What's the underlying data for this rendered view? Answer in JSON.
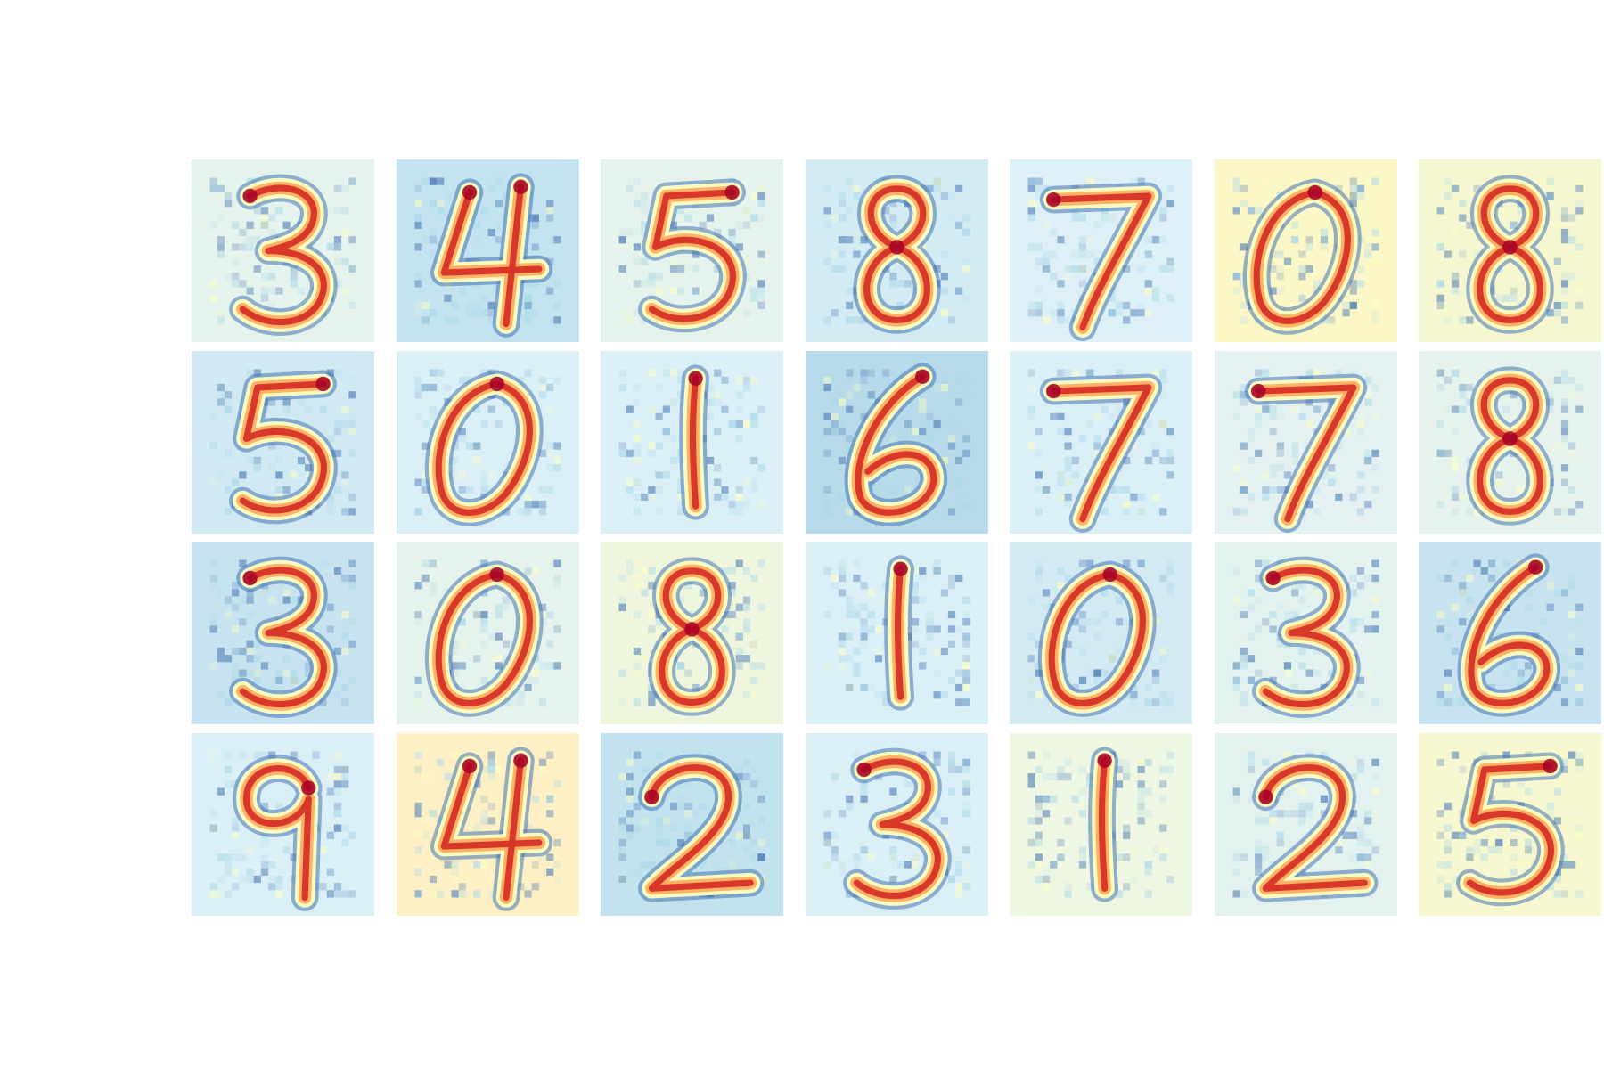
{
  "figure": {
    "colormap": "RdYlBu_r",
    "colors": {
      "low": "#4575b4",
      "mid_low": "#abd9e9",
      "mid": "#ffffbf",
      "mid_high": "#fdae61",
      "high": "#d73027",
      "deep": "#a50026"
    },
    "grid": {
      "rows": 4,
      "cols": 7
    },
    "tiles": [
      {
        "digit": "3",
        "background": "#e4f3ec"
      },
      {
        "digit": "4",
        "background": "#c2e3ef"
      },
      {
        "digit": "5",
        "background": "#e4f3ec"
      },
      {
        "digit": "8",
        "background": "#d3ebf3"
      },
      {
        "digit": "7",
        "background": "#dcf0f6"
      },
      {
        "digit": "0",
        "background": "#fbf7c7"
      },
      {
        "digit": "8",
        "background": "#f4f7d0"
      },
      {
        "digit": "5",
        "background": "#d0e9f2"
      },
      {
        "digit": "0",
        "background": "#dbeff6"
      },
      {
        "digit": "1",
        "background": "#dbeff6"
      },
      {
        "digit": "6",
        "background": "#b7dbea"
      },
      {
        "digit": "7",
        "background": "#dbeff6"
      },
      {
        "digit": "7",
        "background": "#e3f2f1"
      },
      {
        "digit": "8",
        "background": "#e6f3ec"
      },
      {
        "digit": "3",
        "background": "#c6e3ef"
      },
      {
        "digit": "0",
        "background": "#e4f3ec"
      },
      {
        "digit": "8",
        "background": "#eef6de"
      },
      {
        "digit": "1",
        "background": "#dbeff6"
      },
      {
        "digit": "0",
        "background": "#d3eaf3"
      },
      {
        "digit": "3",
        "background": "#e2f2ef"
      },
      {
        "digit": "6",
        "background": "#c6e3ef"
      },
      {
        "digit": "9",
        "background": "#dbeff6"
      },
      {
        "digit": "4",
        "background": "#fdf0c4"
      },
      {
        "digit": "2",
        "background": "#c2e2ee"
      },
      {
        "digit": "3",
        "background": "#dbeff6"
      },
      {
        "digit": "1",
        "background": "#eef7e2"
      },
      {
        "digit": "2",
        "background": "#e2f2ef"
      },
      {
        "digit": "5",
        "background": "#f7f8cf"
      }
    ]
  }
}
